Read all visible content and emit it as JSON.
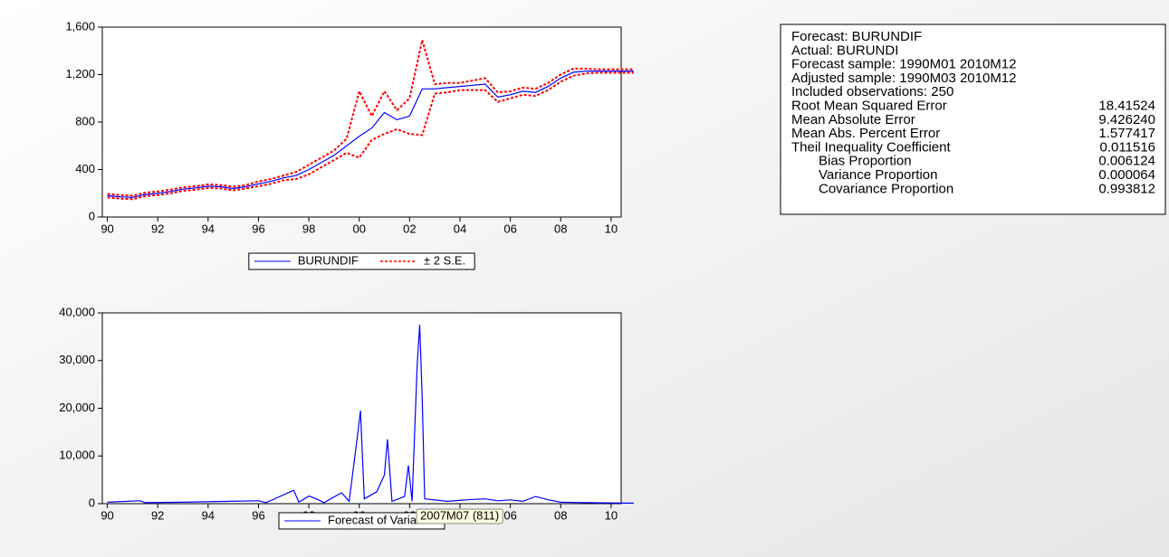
{
  "chart_data": [
    {
      "type": "line",
      "xlim": [
        1989.8,
        2010.4
      ],
      "xticks": [
        {
          "value": 1990,
          "label": "90"
        },
        {
          "value": 1992,
          "label": "92"
        },
        {
          "value": 1994,
          "label": "94"
        },
        {
          "value": 1996,
          "label": "96"
        },
        {
          "value": 1998,
          "label": "98"
        },
        {
          "value": 2000,
          "label": "00"
        },
        {
          "value": 2002,
          "label": "02"
        },
        {
          "value": 2004,
          "label": "04"
        },
        {
          "value": 2006,
          "label": "06"
        },
        {
          "value": 2008,
          "label": "08"
        },
        {
          "value": 2010,
          "label": "10"
        }
      ],
      "ylim": [
        0,
        1600
      ],
      "yticks": [
        0,
        400,
        800,
        {
          "value": 1200,
          "label": "1,200"
        },
        {
          "value": 1600,
          "label": "1,600"
        }
      ],
      "x": [
        1990,
        1990.5,
        1991,
        1991.5,
        1992,
        1992.5,
        1993,
        1993.5,
        1994,
        1994.5,
        1995,
        1995.5,
        1996,
        1996.5,
        1997,
        1997.5,
        1998,
        1998.5,
        1999,
        1999.5,
        2000,
        2000.5,
        2001,
        2001.5,
        2002,
        2002.5,
        2003,
        2003.5,
        2004,
        2004.5,
        2005,
        2005.5,
        2006,
        2006.5,
        2007,
        2007.5,
        2008,
        2008.5,
        2009,
        2009.5,
        2010,
        2010.9
      ],
      "series": [
        {
          "name": "BURUNDIF",
          "color": "#0000ff",
          "values": [
            180,
            170,
            165,
            190,
            200,
            215,
            235,
            245,
            260,
            255,
            240,
            255,
            280,
            300,
            330,
            350,
            400,
            460,
            520,
            600,
            680,
            750,
            880,
            820,
            850,
            1080,
            1080,
            1090,
            1100,
            1110,
            1120,
            1010,
            1030,
            1060,
            1050,
            1100,
            1170,
            1220,
            1230,
            1230,
            1230,
            1230
          ]
        },
        {
          "name": "± 2 S.E.",
          "color": "#ff0000",
          "dash": true,
          "upper": [
            195,
            185,
            180,
            205,
            215,
            230,
            250,
            260,
            275,
            270,
            255,
            270,
            300,
            320,
            350,
            380,
            440,
            500,
            560,
            660,
            1060,
            850,
            1060,
            900,
            1000,
            1490,
            1120,
            1130,
            1130,
            1150,
            1170,
            1050,
            1060,
            1090,
            1080,
            1130,
            1200,
            1250,
            1250,
            1245,
            1245,
            1245
          ],
          "lower": [
            165,
            155,
            150,
            175,
            185,
            200,
            220,
            230,
            245,
            240,
            225,
            240,
            260,
            280,
            310,
            320,
            360,
            420,
            480,
            540,
            500,
            650,
            700,
            740,
            700,
            690,
            1040,
            1050,
            1070,
            1070,
            1070,
            970,
            1000,
            1030,
            1020,
            1070,
            1140,
            1190,
            1210,
            1215,
            1215,
            1215
          ]
        }
      ]
    },
    {
      "type": "line",
      "xlim": [
        1989.8,
        2010.4
      ],
      "xticks": [
        {
          "value": 1990,
          "label": "90"
        },
        {
          "value": 1992,
          "label": "92"
        },
        {
          "value": 1994,
          "label": "94"
        },
        {
          "value": 1996,
          "label": "96"
        },
        {
          "value": 1998,
          "label": "98"
        },
        {
          "value": 2000,
          "label": "00"
        },
        {
          "value": 2002,
          "label": "02"
        },
        {
          "value": 2004,
          "label": "04"
        },
        {
          "value": 2006,
          "label": "06"
        },
        {
          "value": 2008,
          "label": "08"
        },
        {
          "value": 2010,
          "label": "10"
        }
      ],
      "ylim": [
        0,
        40000
      ],
      "yticks": [
        0,
        {
          "value": 10000,
          "label": "10,000"
        },
        {
          "value": 20000,
          "label": "20,000"
        },
        {
          "value": 30000,
          "label": "30,000"
        },
        {
          "value": 40000,
          "label": "40,000"
        }
      ],
      "x": [
        1990,
        1991.3,
        1991.5,
        1993,
        1996,
        1996.3,
        1997.4,
        1997.6,
        1998,
        1998.3,
        1998.6,
        1999.3,
        1999.6,
        1999.95,
        2000.05,
        2000.2,
        2000.7,
        2001,
        2001.12,
        2001.3,
        2001.8,
        2001.95,
        2002.1,
        2002.3,
        2002.4,
        2002.5,
        2002.6,
        2003.5,
        2004.5,
        2005,
        2005.5,
        2006,
        2006.5,
        2007,
        2007.5,
        2008,
        2009,
        2010.9
      ],
      "series": [
        {
          "name": "Forecast of Variance",
          "color": "#0000ff",
          "values": [
            300,
            600,
            200,
            300,
            600,
            200,
            2800,
            300,
            1600,
            1000,
            200,
            2300,
            500,
            15000,
            19500,
            1000,
            2500,
            6000,
            13500,
            500,
            1500,
            8000,
            500,
            29000,
            37500,
            22000,
            1000,
            500,
            900,
            1000,
            600,
            800,
            500,
            1500,
            811,
            300,
            200,
            100
          ]
        }
      ],
      "annotation": "2007M07 (811)"
    }
  ],
  "stats_table": {
    "header": [
      "Forecast: BURUNDIF",
      "Actual: BURUNDI",
      "Forecast sample: 1990M01 2010M12",
      "Adjusted sample: 1990M03 2010M12",
      "Included observations: 250"
    ],
    "rows": [
      [
        "Root Mean Squared Error",
        "18.41524"
      ],
      [
        "Mean Absolute Error",
        "9.426240"
      ],
      [
        "Mean Abs. Percent Error",
        "1.577417"
      ],
      [
        "Theil Inequality Coefficient",
        "0.011516"
      ],
      [
        "Bias Proportion",
        "0.006124"
      ],
      [
        "Variance Proportion",
        "0.000064"
      ],
      [
        "Covariance Proportion",
        "0.993812"
      ]
    ]
  }
}
